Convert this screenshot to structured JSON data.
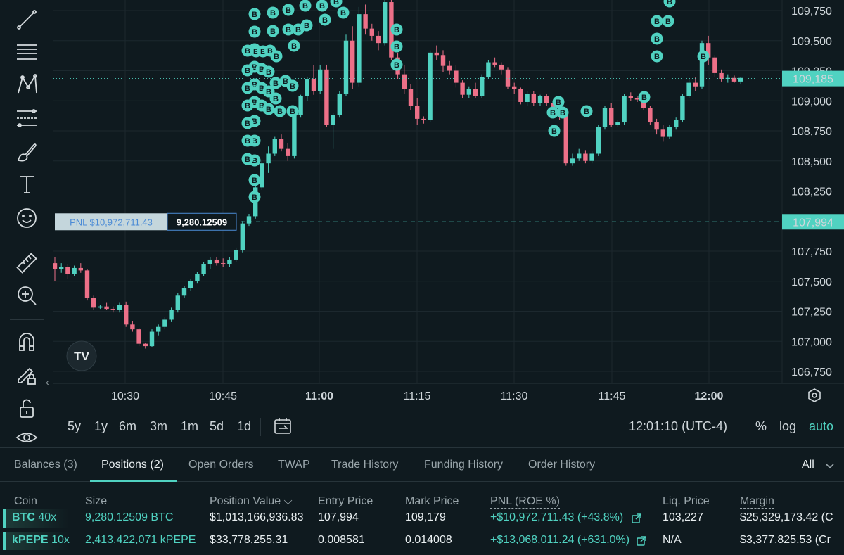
{
  "toolbar": {
    "tools": [
      "trend-line-icon",
      "horizontal-lines-icon",
      "pattern-icon",
      "fib-icon",
      "brush-icon",
      "text-icon",
      "emoji-icon",
      "ruler-icon",
      "zoom-in-icon",
      "magnet-icon",
      "lock-drawing-icon",
      "unlock-icon",
      "eye-icon"
    ],
    "collapse": "‹"
  },
  "chart": {
    "y_ticks": [
      "109,750",
      "109,500",
      "109,250",
      "109,000",
      "108,750",
      "108,500",
      "108,250",
      "107,750",
      "107,500",
      "107,250",
      "107,000",
      "106,750"
    ],
    "x_ticks": [
      "10:30",
      "10:45",
      "11:00",
      "11:15",
      "11:30",
      "11:45",
      "12:00"
    ],
    "x_ticks_bold": [
      "11:00",
      "12:00"
    ],
    "current_price_label": "109,185",
    "entry_price_label": "107,994",
    "pnl_label": "PNL $10,972,711.43",
    "size_label": "9,280.12509",
    "marker_letter": "B",
    "marker_letter_alt": "E",
    "logo_text": "TV",
    "colors": {
      "up": "#50d2c1",
      "down": "#ed7088",
      "bg": "#0f1a1f",
      "grid": "#1c282e",
      "marker": "#50d2c1"
    }
  },
  "chart_data": {
    "type": "candlestick",
    "x_label": "",
    "y_label": "",
    "ylim": [
      106650,
      109850
    ],
    "candles": [
      [
        107650,
        107700,
        107500,
        107600
      ],
      [
        107600,
        107650,
        107570,
        107620
      ],
      [
        107620,
        107640,
        107520,
        107560
      ],
      [
        107560,
        107630,
        107540,
        107610
      ],
      [
        107610,
        107650,
        107570,
        107590
      ],
      [
        107590,
        107600,
        107340,
        107360
      ],
      [
        107360,
        107380,
        107260,
        107280
      ],
      [
        107280,
        107300,
        107270,
        107290
      ],
      [
        107290,
        107320,
        107260,
        107270
      ],
      [
        107270,
        107290,
        107240,
        107260
      ],
      [
        107260,
        107320,
        107240,
        107300
      ],
      [
        107300,
        107330,
        107120,
        107140
      ],
      [
        107140,
        107170,
        107080,
        107100
      ],
      [
        107100,
        107110,
        106960,
        106980
      ],
      [
        106980,
        106990,
        106940,
        106960
      ],
      [
        106960,
        107100,
        106950,
        107080
      ],
      [
        107080,
        107140,
        107050,
        107120
      ],
      [
        107120,
        107200,
        107100,
        107180
      ],
      [
        107180,
        107280,
        107160,
        107260
      ],
      [
        107260,
        107400,
        107240,
        107380
      ],
      [
        107380,
        107460,
        107360,
        107440
      ],
      [
        107440,
        107520,
        107420,
        107500
      ],
      [
        107500,
        107580,
        107480,
        107560
      ],
      [
        107560,
        107660,
        107540,
        107640
      ],
      [
        107640,
        107700,
        107600,
        107680
      ],
      [
        107680,
        107700,
        107630,
        107650
      ],
      [
        107650,
        107690,
        107620,
        107640
      ],
      [
        107640,
        107700,
        107620,
        107680
      ],
      [
        107680,
        107780,
        107660,
        107760
      ],
      [
        107760,
        108000,
        107740,
        107980
      ],
      [
        107980,
        108060,
        107960,
        108040
      ],
      [
        108040,
        108300,
        108020,
        108280
      ],
      [
        108280,
        108500,
        108260,
        108480
      ],
      [
        108480,
        108620,
        108400,
        108560
      ],
      [
        108560,
        108700,
        108540,
        108680
      ],
      [
        108680,
        108720,
        108580,
        108600
      ],
      [
        108600,
        108650,
        108500,
        108540
      ],
      [
        108540,
        108900,
        108520,
        108880
      ],
      [
        108880,
        109050,
        108860,
        109040
      ],
      [
        109040,
        109200,
        109000,
        109180
      ],
      [
        109180,
        109300,
        109050,
        109080
      ],
      [
        109080,
        109300,
        109060,
        109260
      ],
      [
        109260,
        109300,
        108780,
        108800
      ],
      [
        108800,
        108900,
        108600,
        108880
      ],
      [
        108880,
        109080,
        108860,
        109060
      ],
      [
        109060,
        109550,
        109040,
        109500
      ],
      [
        109500,
        109620,
        109100,
        109150
      ],
      [
        109150,
        109780,
        109120,
        109720
      ],
      [
        109720,
        109800,
        109550,
        109600
      ],
      [
        109600,
        109640,
        109500,
        109540
      ],
      [
        109540,
        109580,
        109420,
        109480
      ],
      [
        109480,
        109840,
        109460,
        109820
      ],
      [
        109820,
        109840,
        109340,
        109360
      ],
      [
        109360,
        109400,
        109180,
        109220
      ],
      [
        109220,
        109300,
        109060,
        109100
      ],
      [
        109100,
        109140,
        108920,
        108960
      ],
      [
        108960,
        109020,
        108800,
        108850
      ],
      [
        108850,
        108870,
        108810,
        108840
      ],
      [
        108840,
        109420,
        108820,
        109400
      ],
      [
        109400,
        109460,
        109340,
        109380
      ],
      [
        109380,
        109420,
        109240,
        109290
      ],
      [
        109290,
        109330,
        109220,
        109250
      ],
      [
        109250,
        109300,
        109110,
        109150
      ],
      [
        109150,
        109170,
        109020,
        109050
      ],
      [
        109050,
        109120,
        109020,
        109100
      ],
      [
        109100,
        109150,
        109020,
        109040
      ],
      [
        109040,
        109220,
        109020,
        109200
      ],
      [
        109200,
        109340,
        109180,
        109320
      ],
      [
        109320,
        109360,
        109280,
        109300
      ],
      [
        109300,
        109320,
        109220,
        109260
      ],
      [
        109260,
        109280,
        109100,
        109120
      ],
      [
        109120,
        109150,
        109060,
        109100
      ],
      [
        109100,
        109110,
        108970,
        108990
      ],
      [
        108990,
        109080,
        108960,
        109060
      ],
      [
        109060,
        109080,
        108960,
        108980
      ],
      [
        108980,
        109050,
        108960,
        109040
      ],
      [
        109040,
        109060,
        108960,
        108980
      ],
      [
        108980,
        109000,
        108880,
        108920
      ],
      [
        108920,
        108940,
        108840,
        108880
      ],
      [
        108880,
        108920,
        108460,
        108480
      ],
      [
        108480,
        108560,
        108460,
        108520
      ],
      [
        108520,
        108600,
        108500,
        108560
      ],
      [
        108560,
        108590,
        108480,
        108500
      ],
      [
        108500,
        108580,
        108480,
        108560
      ],
      [
        108560,
        108800,
        108540,
        108780
      ],
      [
        108780,
        108960,
        108760,
        108940
      ],
      [
        108940,
        108980,
        108780,
        108800
      ],
      [
        108800,
        108840,
        108780,
        108820
      ],
      [
        108820,
        109060,
        108800,
        109040
      ],
      [
        109040,
        109070,
        109000,
        109020
      ],
      [
        109020,
        109040,
        108990,
        109010
      ],
      [
        109010,
        109050,
        108920,
        108940
      ],
      [
        108940,
        108960,
        108800,
        108820
      ],
      [
        108820,
        108850,
        108720,
        108760
      ],
      [
        108760,
        108800,
        108660,
        108700
      ],
      [
        108700,
        108800,
        108680,
        108780
      ],
      [
        108780,
        108860,
        108760,
        108840
      ],
      [
        108840,
        109060,
        108820,
        109040
      ],
      [
        109040,
        109190,
        109020,
        109150
      ],
      [
        109150,
        109200,
        109080,
        109120
      ],
      [
        109120,
        109500,
        109100,
        109480
      ],
      [
        109480,
        109540,
        109300,
        109360
      ],
      [
        109360,
        109380,
        109200,
        109230
      ],
      [
        109230,
        109260,
        109160,
        109180
      ],
      [
        109180,
        109220,
        109150,
        109190
      ],
      [
        109190,
        109210,
        109150,
        109160
      ],
      [
        109160,
        109200,
        109140,
        109190
      ]
    ],
    "current_price": 109185,
    "entry_price": 107994
  },
  "ranges": [
    "5y",
    "1y",
    "6m",
    "3m",
    "1m",
    "5d",
    "1d"
  ],
  "clock": "12:01:10 (UTC-4)",
  "scale_options": [
    "%",
    "log",
    "auto"
  ],
  "tabs": [
    "Balances (3)",
    "Positions (2)",
    "Open Orders",
    "TWAP",
    "Trade History",
    "Funding History",
    "Order History"
  ],
  "filter": "All",
  "columns": [
    "Coin",
    "Size",
    "Position Value ⌵",
    "Entry Price",
    "Mark Price",
    "PNL (ROE %)",
    "Liq. Price",
    "Margin"
  ],
  "positions": [
    {
      "coin": "BTC",
      "lev": "40x",
      "size": "9,280.12509 BTC",
      "value": "$1,013,166,936.83",
      "entry": "107,994",
      "mark": "109,179",
      "pnl": "+$10,972,711.43 (+43.8%)",
      "liq": "103,227",
      "margin": "$25,329,173.42 (C"
    },
    {
      "coin": "kPEPE",
      "lev": "10x",
      "size": "2,413,422,071 kPEPE",
      "value": "$33,778,255.31",
      "entry": "0.008581",
      "mark": "0.014008",
      "pnl": "+$13,068,011.24 (+631.0%)",
      "liq": "N/A",
      "margin": "$3,377,825.53 (Cr"
    }
  ]
}
